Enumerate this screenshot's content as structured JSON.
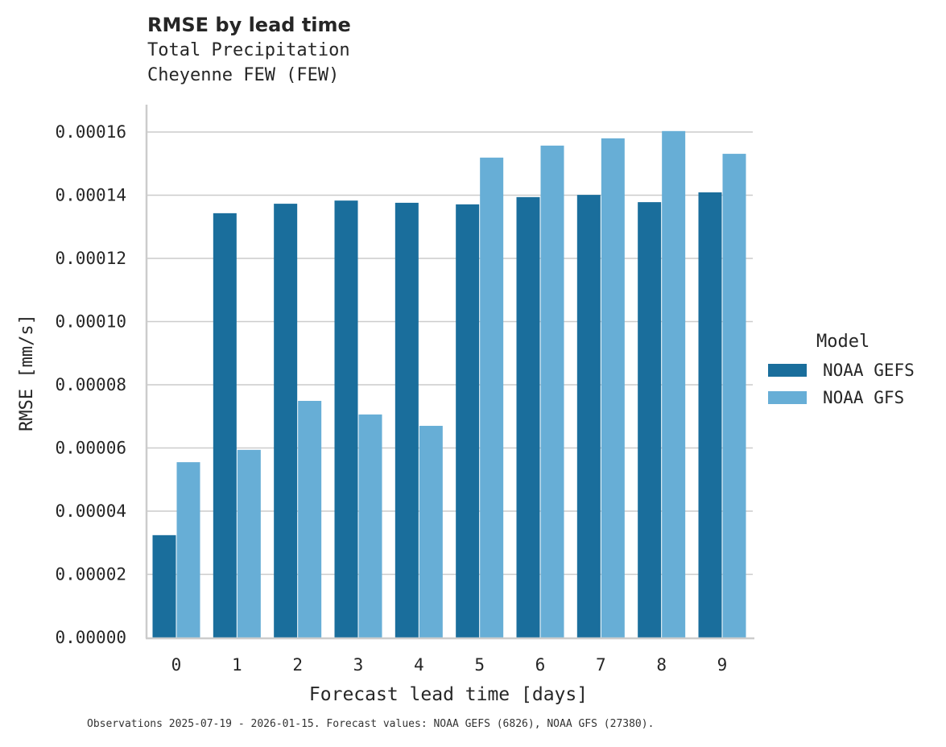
{
  "chart_data": {
    "type": "bar",
    "title": "RMSE by lead time",
    "subtitle": [
      "Total Precipitation",
      "Cheyenne FEW (FEW)"
    ],
    "xlabel": "Forecast lead time [days]",
    "ylabel": "RMSE [mm/s]",
    "categories": [
      "0",
      "1",
      "2",
      "3",
      "4",
      "5",
      "6",
      "7",
      "8",
      "9"
    ],
    "series": [
      {
        "name": "NOAA GEFS",
        "color": "#1a6e9c",
        "values": [
          3.24e-05,
          0.0001343,
          0.0001373,
          0.0001383,
          0.0001376,
          0.0001371,
          0.0001394,
          0.0001401,
          0.0001378,
          0.0001409
        ]
      },
      {
        "name": "NOAA GFS",
        "color": "#67aed6",
        "values": [
          5.55e-05,
          5.94e-05,
          7.49e-05,
          7.06e-05,
          6.7e-05,
          0.0001519,
          0.0001557,
          0.000158,
          0.0001603,
          0.0001531
        ]
      }
    ],
    "yticks": [
      "0.00000",
      "0.00002",
      "0.00004",
      "0.00006",
      "0.00008",
      "0.00010",
      "0.00012",
      "0.00014",
      "0.00016"
    ],
    "ylim": [
      0,
      0.000169
    ],
    "grid": "horizontal",
    "legend": {
      "title": "Model",
      "position": "right"
    }
  },
  "header": {
    "title": "RMSE by lead time",
    "subtitle1": "Total Precipitation",
    "subtitle2": "Cheyenne FEW (FEW)"
  },
  "legend": {
    "title": "Model",
    "items": [
      "NOAA GEFS",
      "NOAA GFS"
    ]
  },
  "footnote": "Observations 2025-07-19 - 2026-01-15. Forecast values: NOAA GEFS (6826), NOAA GFS (27380)."
}
